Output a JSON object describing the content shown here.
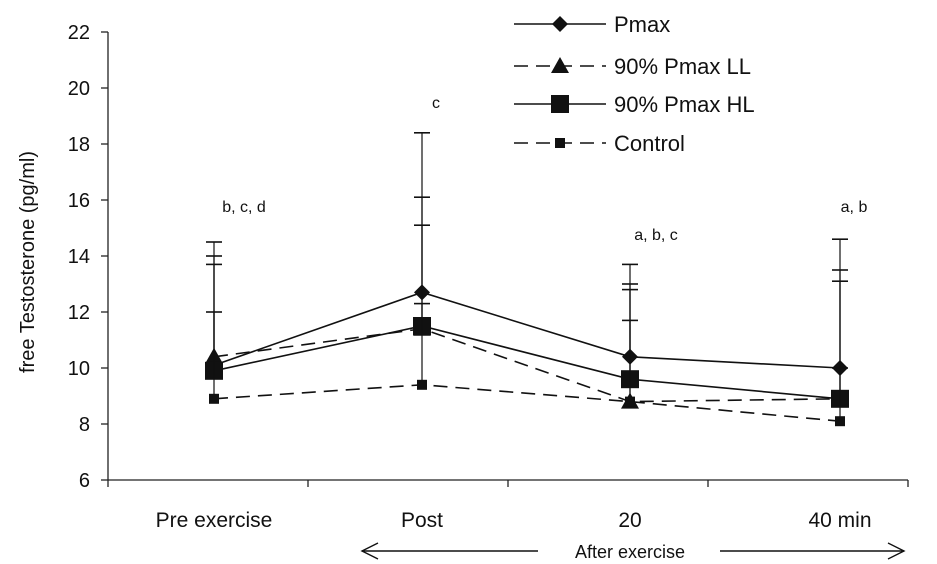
{
  "chart_data": {
    "type": "line",
    "ylabel": "free Testosterone (pg/ml)",
    "ylim": [
      6,
      22
    ],
    "yticks": [
      6,
      8,
      10,
      12,
      14,
      16,
      18,
      20,
      22
    ],
    "categories": [
      "Pre exercise",
      "Post",
      "20",
      "40 min"
    ],
    "grid": false,
    "legend_position": "top-right",
    "series": [
      {
        "name": "Pmax",
        "marker": "diamond",
        "dash": "solid",
        "values": [
          10.1,
          12.7,
          10.4,
          10.0
        ],
        "error_upper": [
          14.5,
          18.4,
          13.7,
          14.6
        ]
      },
      {
        "name": "90% Pmax LL",
        "marker": "triangle",
        "dash": "dashed",
        "values": [
          10.4,
          11.4,
          8.8,
          8.9
        ],
        "error_upper": [
          14.0,
          16.1,
          13.0,
          13.5
        ]
      },
      {
        "name": "90% Pmax HL",
        "marker": "square",
        "dash": "solid",
        "values": [
          9.9,
          11.5,
          9.6,
          8.9
        ],
        "error_upper": [
          13.7,
          15.1,
          12.8,
          13.1
        ]
      },
      {
        "name": "Control",
        "marker": "small-square",
        "dash": "dashed",
        "values": [
          8.9,
          9.4,
          8.8,
          8.1
        ],
        "error_upper": [
          12.0,
          12.3,
          11.7,
          10.0
        ]
      }
    ],
    "annotations": [
      "b, c, d",
      "c",
      "a, b, c",
      "a, b"
    ],
    "range_label": "After exercise"
  }
}
